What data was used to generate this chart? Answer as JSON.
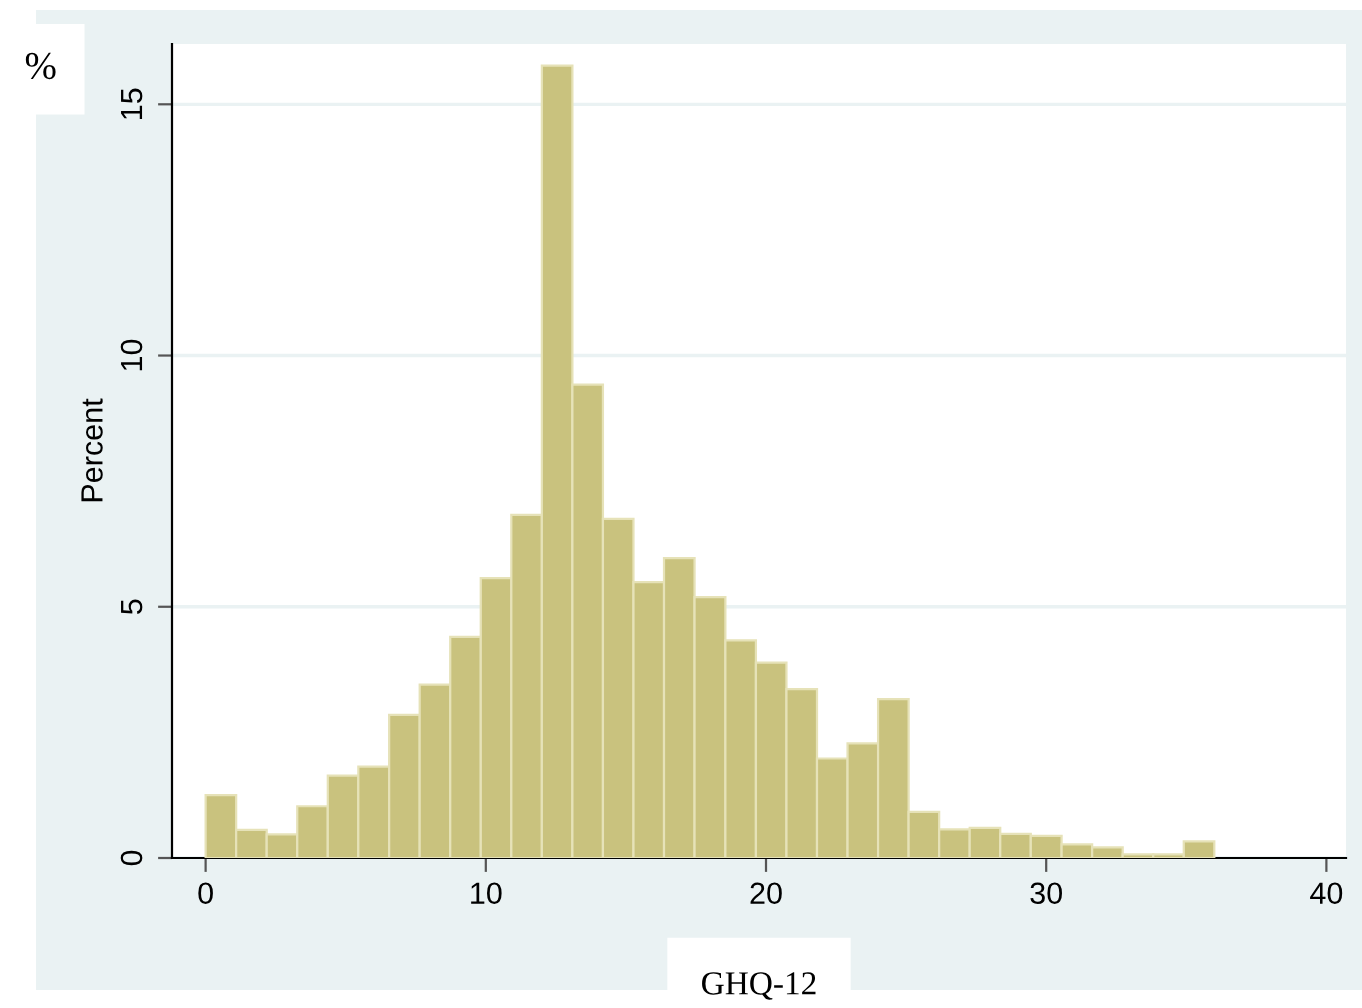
{
  "chart_data": {
    "type": "histogram",
    "bins": [
      0,
      1.09,
      2.18,
      3.27,
      4.36,
      5.45,
      6.55,
      7.64,
      8.73,
      9.82,
      10.91,
      12,
      13.09,
      14.18,
      15.27,
      16.36,
      17.45,
      18.55,
      19.64,
      20.73,
      21.82,
      22.91,
      24,
      25.09,
      26.18,
      27.27,
      28.36,
      29.45,
      30.55,
      31.64,
      32.73,
      33.82,
      34.91,
      36
    ],
    "values": [
      1.25,
      0.56,
      0.47,
      1.03,
      1.64,
      1.82,
      2.85,
      3.45,
      4.4,
      5.57,
      6.83,
      15.77,
      9.42,
      6.75,
      5.49,
      5.97,
      5.19,
      4.33,
      3.89,
      3.36,
      1.98,
      2.28,
      3.16,
      0.92,
      0.57,
      0.6,
      0.48,
      0.44,
      0.27,
      0.21,
      0.07,
      0.07,
      0.33
    ],
    "color": "#c9c27e",
    "xlabel": "GHQ-12",
    "ylabel": "Percent",
    "annotations": [
      "%"
    ],
    "xlim": [
      -1.2,
      40.7
    ],
    "ylim": [
      0,
      16.2
    ],
    "xticks": [
      0,
      10,
      20,
      30,
      40
    ],
    "yticks": [
      0,
      5,
      10,
      15
    ],
    "grid": "y"
  }
}
